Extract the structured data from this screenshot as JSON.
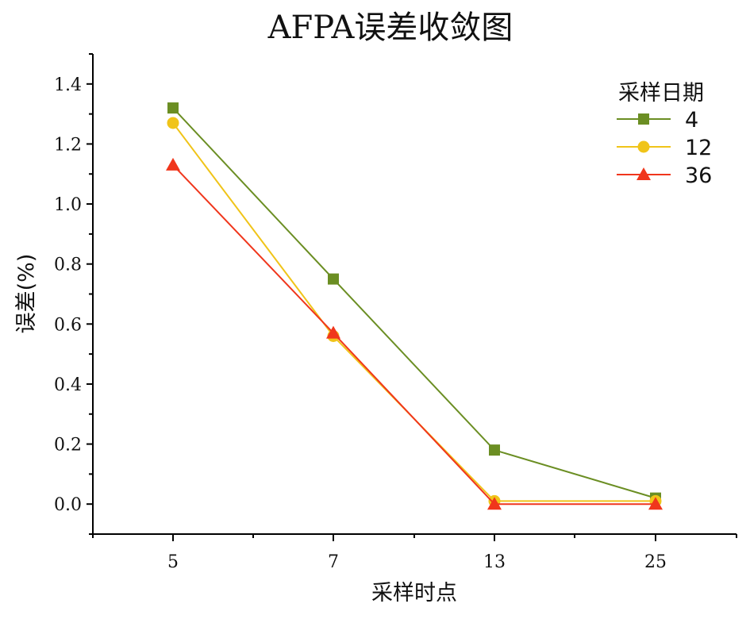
{
  "chart_data": {
    "type": "line",
    "title": "AFPA误差收敛图",
    "xlabel": "采样时点",
    "ylabel": "误差(%)",
    "categories": [
      "5",
      "7",
      "13",
      "25"
    ],
    "ylim": [
      -0.1,
      1.5
    ],
    "yticks": [
      0.0,
      0.2,
      0.4,
      0.6,
      0.8,
      1.0,
      1.2,
      1.4
    ],
    "ytick_labels": [
      "0.0",
      "0.2",
      "0.4",
      "0.6",
      "0.8",
      "1.0",
      "1.2",
      "1.4"
    ],
    "grid": false,
    "legend": {
      "title": "采样日期",
      "position": "top-right"
    },
    "series": [
      {
        "name": "4",
        "values": [
          1.32,
          0.75,
          0.18,
          0.02
        ],
        "color": "#6b8e23",
        "marker": "square"
      },
      {
        "name": "12",
        "values": [
          1.27,
          0.56,
          0.01,
          0.01
        ],
        "color": "#f0c419",
        "marker": "circle"
      },
      {
        "name": "36",
        "values": [
          1.13,
          0.57,
          0.0,
          0.0
        ],
        "color": "#f0361c",
        "marker": "triangle"
      }
    ]
  }
}
